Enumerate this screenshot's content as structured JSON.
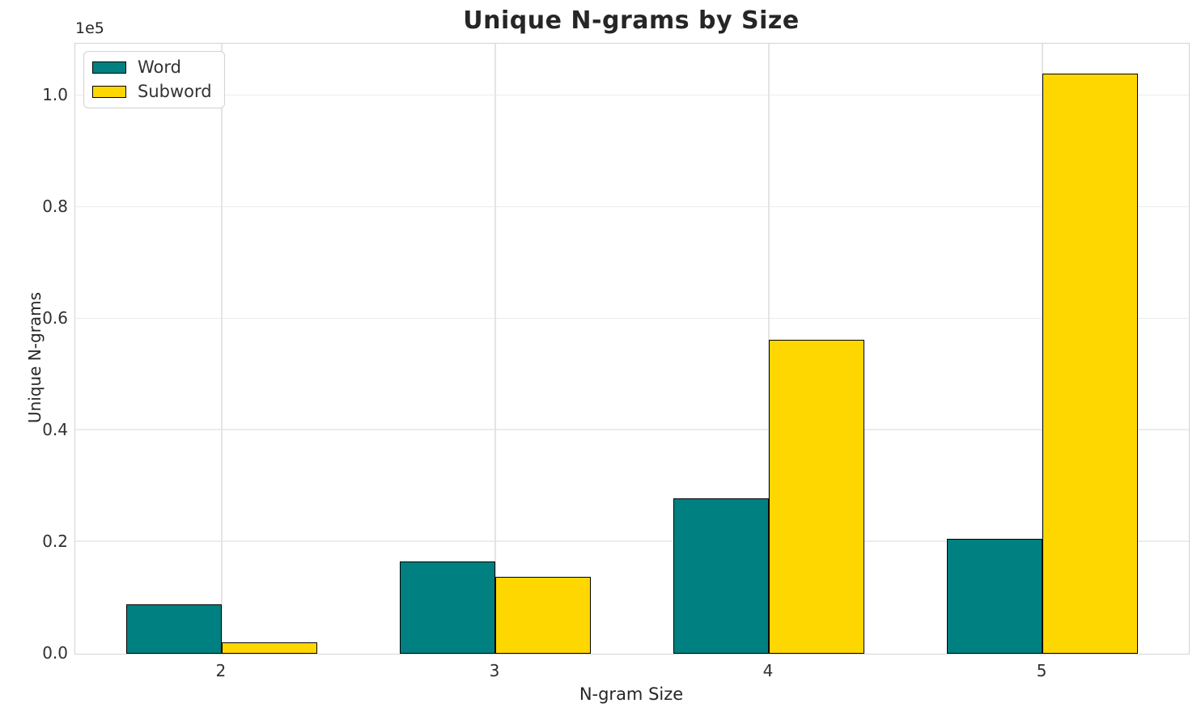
{
  "chart_data": {
    "type": "bar",
    "title": "Unique N-grams by Size",
    "xlabel": "N-gram Size",
    "ylabel": "Unique N-grams",
    "y_offset_label": "1e5",
    "categories": [
      "2",
      "3",
      "4",
      "5"
    ],
    "series": [
      {
        "name": "Word",
        "color": "#008080",
        "values": [
          8900,
          16600,
          27800,
          20600
        ]
      },
      {
        "name": "Subword",
        "color": "#FFD700",
        "values": [
          2000,
          13800,
          56200,
          104000
        ]
      }
    ],
    "y_ticks": [
      {
        "value": 0,
        "label": "0.0"
      },
      {
        "value": 20000,
        "label": "0.2"
      },
      {
        "value": 40000,
        "label": "0.4"
      },
      {
        "value": 60000,
        "label": "0.6"
      },
      {
        "value": 80000,
        "label": "0.8"
      },
      {
        "value": 100000,
        "label": "1.0"
      }
    ],
    "ylim": [
      0,
      109300
    ],
    "grid": true,
    "legend_position": "upper left",
    "bar_edge_color": "#000000",
    "background_color": "#ffffff",
    "gridline_color": "#ececec",
    "spine_color": "#d4d4d4",
    "text_color": "#262626"
  }
}
